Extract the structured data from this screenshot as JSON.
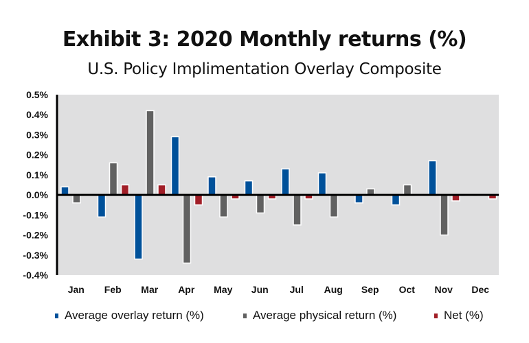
{
  "chart_data": {
    "type": "bar",
    "title": "Exhibit 3: 2020 Monthly returns (%)",
    "subtitle": "U.S. Policy Implimentation Overlay Composite",
    "xlabel": "",
    "ylabel": "",
    "ylim": [
      -0.4,
      0.5
    ],
    "yticks": [
      0.5,
      0.4,
      0.3,
      0.2,
      0.1,
      0.0,
      -0.1,
      -0.2,
      -0.3,
      -0.4
    ],
    "ytick_labels": [
      "0.5%",
      "0.4%",
      "0.3%",
      "0.2%",
      "0.1%",
      "0.0%",
      "-0.1%",
      "-0.2%",
      "-0.3%",
      "-0.4%"
    ],
    "grid": false,
    "legend_position": "bottom",
    "categories": [
      "Jan",
      "Feb",
      "Mar",
      "Apr",
      "May",
      "Jun",
      "Jul",
      "Aug",
      "Sep",
      "Oct",
      "Nov",
      "Dec"
    ],
    "series": [
      {
        "name": "Average overlay return (%)",
        "color": "#00519A",
        "values": [
          0.04,
          -0.11,
          -0.32,
          0.29,
          0.09,
          0.07,
          0.13,
          0.11,
          -0.04,
          -0.05,
          0.17,
          0.0
        ]
      },
      {
        "name": "Average physical return (%)",
        "color": "#616161",
        "values": [
          -0.04,
          0.16,
          0.42,
          -0.34,
          -0.11,
          -0.09,
          -0.15,
          -0.11,
          0.03,
          0.05,
          -0.2,
          0.0
        ]
      },
      {
        "name": "Net (%)",
        "color": "#A11E27",
        "values": [
          0.0,
          0.05,
          0.05,
          -0.05,
          -0.02,
          -0.02,
          -0.02,
          0.0,
          0.0,
          0.0,
          -0.03,
          -0.02
        ]
      }
    ],
    "plot_background": "#DFDFE0"
  }
}
